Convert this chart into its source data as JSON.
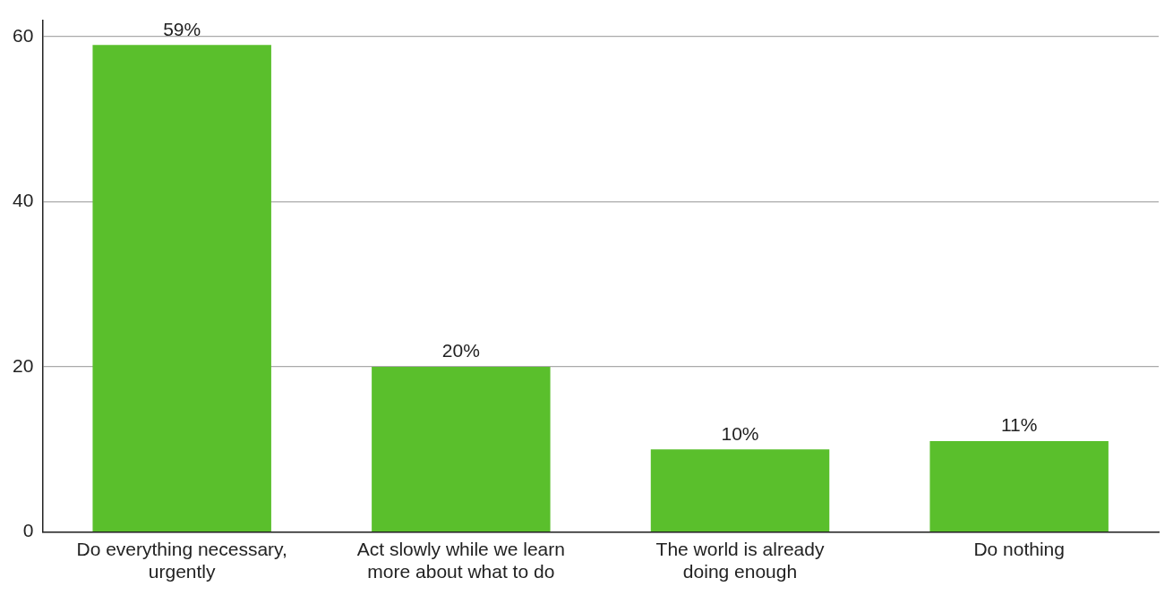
{
  "chart_data": {
    "type": "bar",
    "categories": [
      "Do everything necessary, urgently",
      "Act slowly while we learn more about what to do",
      "The world is already doing enough",
      "Do nothing"
    ],
    "values": [
      59,
      20,
      10,
      11
    ],
    "value_labels": [
      "59%",
      "20%",
      "10%",
      "11%"
    ],
    "color": "#5abf2c",
    "ylim": [
      0,
      62
    ],
    "yticks": [
      0,
      20,
      40,
      60
    ],
    "grid": "y",
    "legend": false
  }
}
